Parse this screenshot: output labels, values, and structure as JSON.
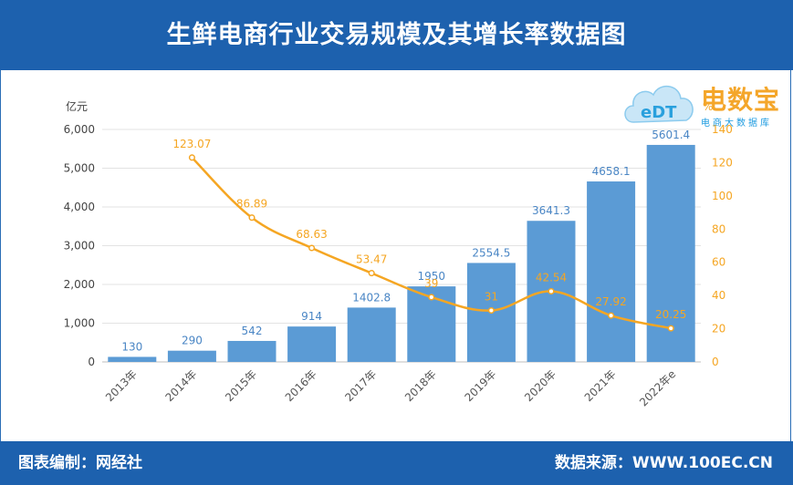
{
  "header": {
    "title": "生鲜电商行业交易规模及其增长率数据图"
  },
  "footer": {
    "left": "图表编制：网经社",
    "right": "数据来源：WWW.100EC.CN"
  },
  "logo": {
    "name": "电数宝",
    "sub": "电商大数据库",
    "badge": "eDT",
    "accent": "#f4a62a"
  },
  "chart_data": {
    "type": "bar",
    "title": "生鲜电商行业交易规模及其增长率数据图",
    "categories": [
      "2013年",
      "2014年",
      "2015年",
      "2016年",
      "2017年",
      "2018年",
      "2019年",
      "2020年",
      "2021年",
      "2022年e"
    ],
    "y_left": {
      "unit": "亿元",
      "range": [
        0,
        6000
      ],
      "ticks": [
        "0",
        "1,000",
        "2,000",
        "3,000",
        "4,000",
        "5,000",
        "6,000"
      ]
    },
    "y_right": {
      "unit": "%",
      "range": [
        0,
        140
      ],
      "ticks": [
        "0",
        "20",
        "40",
        "60",
        "80",
        "100",
        "120",
        "140"
      ]
    },
    "series": [
      {
        "type": "bar",
        "axis": "left",
        "color": "#5b9bd5",
        "values": [
          130,
          290,
          542,
          914,
          1402.8,
          1950,
          2554.5,
          3641.3,
          4658.1,
          5601.4
        ],
        "labels": [
          "130",
          "290",
          "542",
          "914",
          "1402.8",
          "1950",
          "2554.5",
          "3641.3",
          "4658.1",
          "5601.4"
        ]
      },
      {
        "type": "line",
        "axis": "right",
        "color": "#f5a623",
        "values": [
          null,
          123.07,
          86.89,
          68.63,
          53.47,
          39,
          31,
          42.54,
          27.92,
          20.25
        ],
        "labels": [
          null,
          "123.07",
          "86.89",
          "68.63",
          "53.47",
          "39",
          "31",
          "42.54",
          "27.92",
          "20.25"
        ]
      }
    ],
    "grid": true
  }
}
